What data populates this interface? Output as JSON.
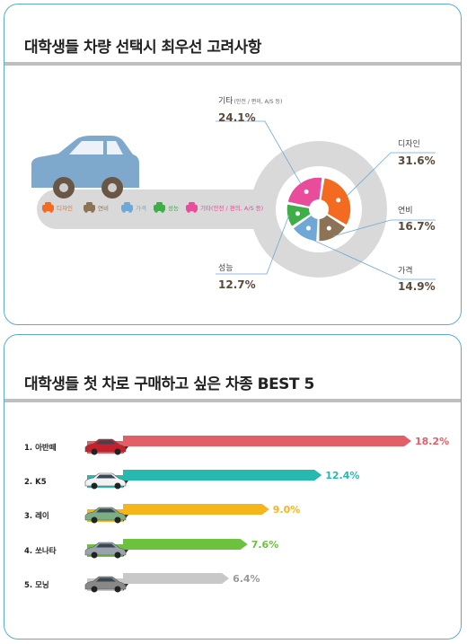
{
  "panel1": {
    "title": "대학생들 차량 선택시 최우선 고려사항",
    "chart_data": {
      "type": "pie",
      "title": "대학생들 차량 선택시 최우선 고려사항",
      "categories": [
        "디자인",
        "연비",
        "가격",
        "성능",
        "기타(안전 / 편의, A/S 등)"
      ],
      "values": [
        31.6,
        16.7,
        14.9,
        12.7,
        24.1
      ],
      "value_labels": [
        "31.6%",
        "16.7%",
        "14.9%",
        "12.7%",
        "24.1%"
      ],
      "callout_labels": [
        "디자인",
        "연비",
        "가격",
        "성능",
        "기타"
      ],
      "other_detail": "(안전 / 편의, A/S 등)",
      "legend_placement": "left",
      "colors": [
        "#f26b21",
        "#8c7356",
        "#6fa8d6",
        "#3fae49",
        "#e84c9a"
      ]
    }
  },
  "panel2": {
    "title": "대학생들 첫 차로 구매하고 싶은 차종 BEST 5",
    "chart_data": {
      "type": "bar",
      "title": "대학생들 첫 차로 구매하고 싶은 차종 BEST 5",
      "categories": [
        "1. 아반떼",
        "2. K5",
        "3. 레이",
        "4. 쏘나타",
        "5. 모닝"
      ],
      "values": [
        18.2,
        12.4,
        9.0,
        7.6,
        6.4
      ],
      "value_labels": [
        "18.2%",
        "12.4%",
        "9.0%",
        "7.6%",
        "6.4%"
      ],
      "colors": [
        "#e35f67",
        "#27b8b0",
        "#f7b51c",
        "#6cc23c",
        "#c8c8c8"
      ],
      "label_colors": [
        "#e35f67",
        "#27b8b0",
        "#f7b51c",
        "#6cc23c",
        "#9a9a9a"
      ],
      "car_colors": [
        "#c8202b",
        "#f2f2f2",
        "#7cae86",
        "#9aa3ad",
        "#888888"
      ],
      "xlim": [
        0,
        18.2
      ],
      "grid": false
    }
  }
}
